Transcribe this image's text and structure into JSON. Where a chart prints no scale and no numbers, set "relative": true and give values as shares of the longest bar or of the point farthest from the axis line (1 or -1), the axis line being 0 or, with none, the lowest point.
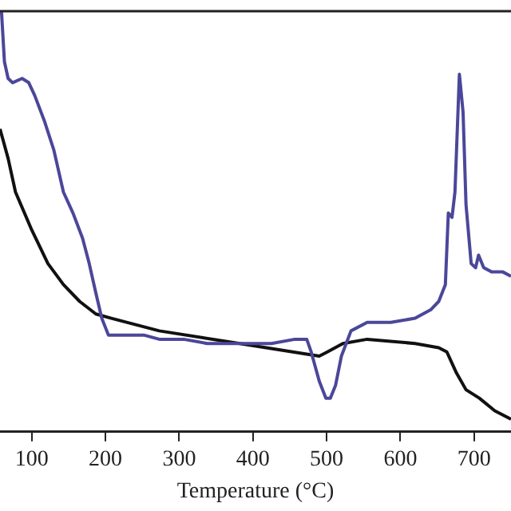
{
  "chart_data": {
    "type": "line",
    "xlabel": "Temperature (°C)",
    "relative": true,
    "xlim": [
      57,
      750
    ],
    "xticks": [
      100,
      200,
      300,
      400,
      500,
      600,
      700
    ],
    "grid": false,
    "legend": false,
    "marker": "none",
    "line_style": "solid",
    "series": [
      {
        "color": "#4b4799",
        "x": [
          59,
          63,
          68,
          74,
          87,
          96,
          104,
          117,
          130,
          143,
          156,
          169,
          178,
          187,
          195,
          204,
          213,
          230,
          252,
          273,
          306,
          338,
          382,
          425,
          457,
          473,
          479,
          490,
          499,
          505,
          512,
          520,
          533,
          555,
          587,
          620,
          641,
          652,
          661,
          665,
          670,
          674,
          680,
          685,
          689,
          696,
          702,
          706,
          713,
          724,
          739,
          750
        ],
        "values": [
          1,
          0.88,
          0.84,
          0.83,
          0.84,
          0.83,
          0.8,
          0.74,
          0.67,
          0.57,
          0.52,
          0.46,
          0.4,
          0.33,
          0.27,
          0.23,
          0.23,
          0.23,
          0.23,
          0.22,
          0.22,
          0.21,
          0.21,
          0.21,
          0.22,
          0.22,
          0.19,
          0.12,
          0.08,
          0.08,
          0.11,
          0.18,
          0.24,
          0.26,
          0.26,
          0.27,
          0.29,
          0.31,
          0.35,
          0.52,
          0.51,
          0.57,
          0.85,
          0.76,
          0.54,
          0.4,
          0.39,
          0.42,
          0.39,
          0.38,
          0.38,
          0.37
        ]
      },
      {
        "color": "#111111",
        "x": [
          57,
          68,
          78,
          100,
          122,
          143,
          165,
          187,
          208,
          273,
          382,
          490,
          501,
          522,
          555,
          620,
          652,
          663,
          676,
          689,
          707,
          728,
          750
        ],
        "values": [
          0.72,
          0.65,
          0.57,
          0.48,
          0.4,
          0.35,
          0.31,
          0.28,
          0.27,
          0.24,
          0.21,
          0.18,
          0.19,
          0.21,
          0.22,
          0.21,
          0.2,
          0.19,
          0.14,
          0.1,
          0.08,
          0.05,
          0.03
        ]
      }
    ]
  }
}
